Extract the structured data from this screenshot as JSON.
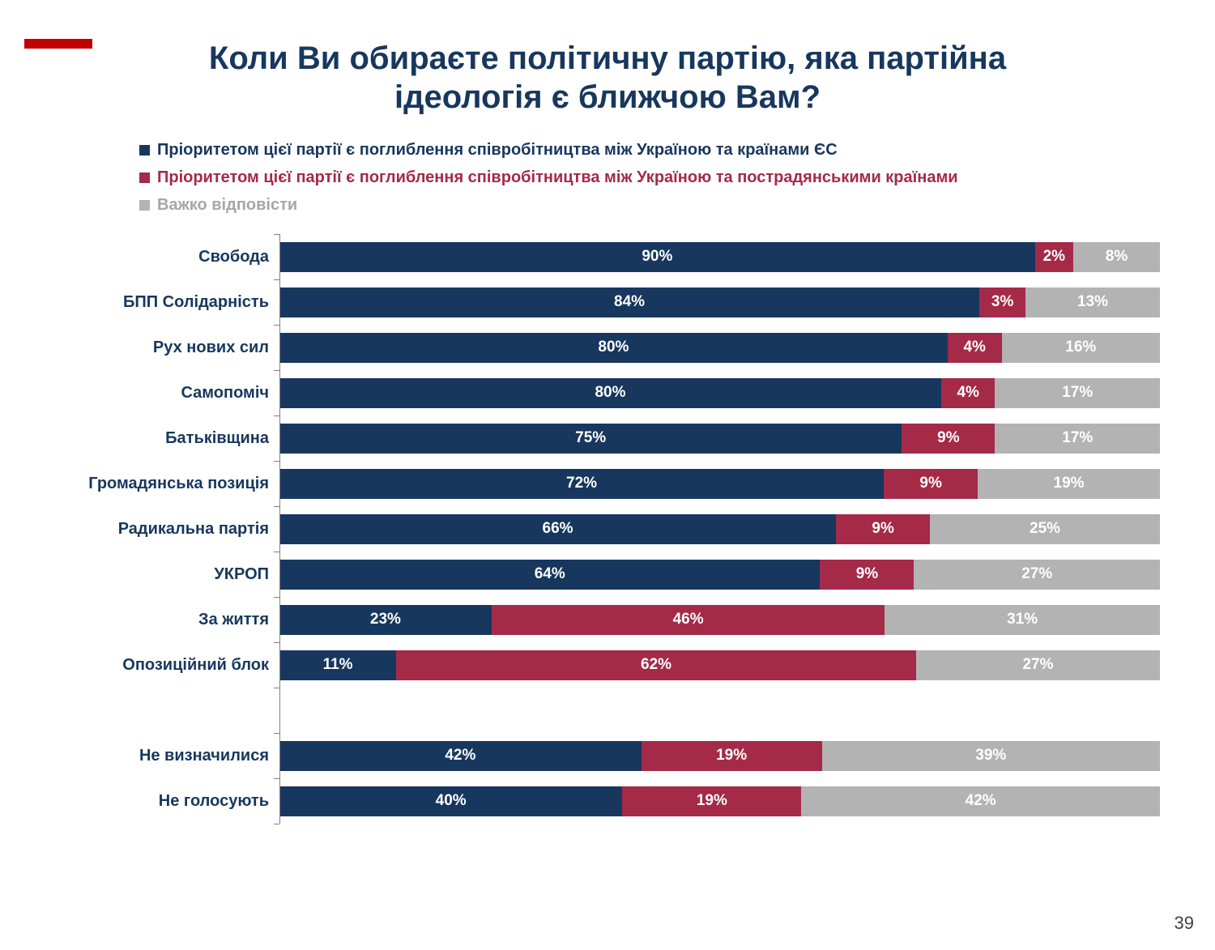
{
  "slide": {
    "page_number": "39",
    "accent_color": "#c00000"
  },
  "title": {
    "line1": "Коли Ви обираєте політичну партію, яка партійна",
    "line2": "ідеологія є ближчою Вам?"
  },
  "legend": {
    "items": [
      {
        "label": "Пріоритетом цієї партії є поглиблення співробітництва між Україною та країнами ЄС",
        "bullet_color": "#17375e",
        "text_color": "#17375e"
      },
      {
        "label": "Пріоритетом цієї партії є поглиблення співробітництва між Україною та пострадянськими країнами",
        "bullet_color": "#a42a48",
        "text_color": "#a42a48"
      },
      {
        "label": "Важко відповісти",
        "bullet_color": "#b3b3b3",
        "text_color": "#a6a6a6"
      }
    ]
  },
  "chart_data": {
    "type": "bar",
    "orientation": "horizontal",
    "stacked": true,
    "unit": "%",
    "xlim": [
      0,
      100
    ],
    "value_labels": "inside-white-bold",
    "categories": [
      "Свобода",
      "БПП Солідарність",
      "Рух нових сил",
      "Самопоміч",
      "Батьківщина",
      "Громадянська позиція",
      "Радикальна партія",
      "УКРОП",
      "За життя",
      "Опозиційний блок",
      "",
      "Не визначилися",
      "Не голосують"
    ],
    "series": [
      {
        "name": "Пріоритетом цієї партії є поглиблення співробітництва між Україною та країнами ЄС",
        "color": "#17375e",
        "values": [
          90,
          84,
          80,
          80,
          75,
          72,
          66,
          64,
          23,
          11,
          null,
          42,
          40
        ]
      },
      {
        "name": "Пріоритетом цієї партії є поглиблення співробітництва між Україною та пострадянськими країнами",
        "color": "#a42a48",
        "values": [
          2,
          3,
          4,
          4,
          9,
          9,
          9,
          9,
          46,
          62,
          null,
          19,
          19
        ]
      },
      {
        "name": "Важко відповісти",
        "color": "#b3b3b3",
        "values": [
          8,
          13,
          16,
          17,
          17,
          19,
          25,
          27,
          31,
          27,
          null,
          39,
          42
        ]
      }
    ]
  }
}
